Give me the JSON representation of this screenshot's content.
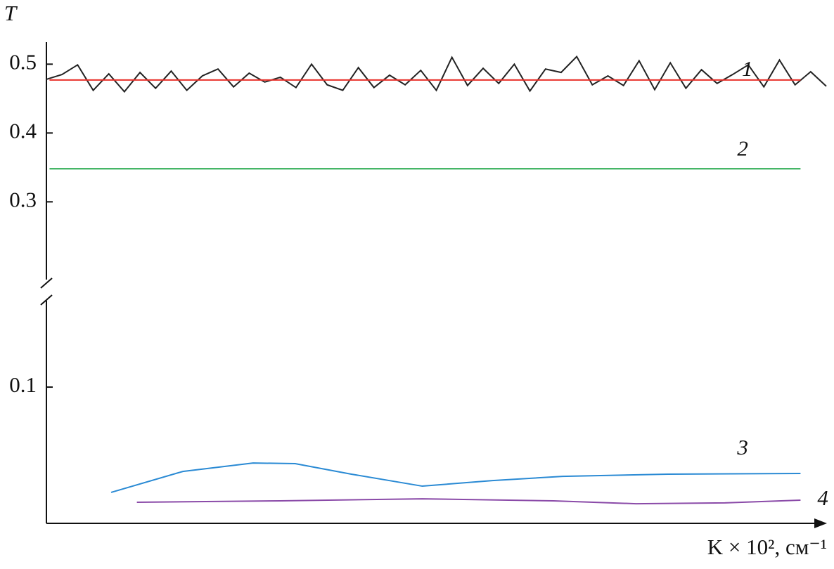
{
  "chart_data": [
    {
      "type": "line",
      "ylabel": "T",
      "xlim": [
        0,
        100
      ],
      "ylim": [
        0.185,
        0.532
      ],
      "yticks": [
        0.3,
        0.4,
        0.5
      ],
      "series": [
        {
          "name": "1",
          "color": "#222222",
          "x": [
            0,
            2,
            4,
            6,
            8,
            10,
            12,
            14,
            16,
            18,
            20,
            22,
            24,
            26,
            28,
            30,
            32,
            34,
            36,
            38,
            40,
            42,
            44,
            46,
            48,
            50,
            52,
            54,
            56,
            58,
            60,
            62,
            64,
            66,
            68,
            70,
            72,
            74,
            76,
            78,
            80,
            82,
            84,
            86,
            88,
            90,
            92,
            94,
            96,
            98,
            100
          ],
          "values": [
            0.478,
            0.485,
            0.499,
            0.462,
            0.486,
            0.46,
            0.488,
            0.465,
            0.49,
            0.462,
            0.483,
            0.493,
            0.467,
            0.487,
            0.474,
            0.481,
            0.466,
            0.5,
            0.47,
            0.462,
            0.495,
            0.466,
            0.484,
            0.47,
            0.491,
            0.462,
            0.51,
            0.469,
            0.494,
            0.472,
            0.5,
            0.461,
            0.493,
            0.488,
            0.511,
            0.47,
            0.483,
            0.469,
            0.505,
            0.463,
            0.502,
            0.465,
            0.492,
            0.472,
            0.485,
            0.499,
            0.467,
            0.506,
            0.47,
            0.489,
            0.468
          ]
        },
        {
          "color": "#e8302a",
          "x": [
            0.4,
            96.7
          ],
          "values": [
            0.477,
            0.477
          ]
        },
        {
          "name": "2",
          "color": "#22a84a",
          "x": [
            0.4,
            96.7
          ],
          "values": [
            0.348,
            0.348
          ]
        }
      ]
    },
    {
      "type": "line",
      "xlabel": "K × 10², см⁻¹",
      "xlim": [
        0,
        100
      ],
      "ylim": [
        0,
        0.165
      ],
      "yticks": [
        0.1
      ],
      "series": [
        {
          "name": "3",
          "color": "#2a8ad4",
          "x": [
            8.3,
            17.5,
            26.5,
            31.9,
            39.1,
            48.2,
            57.2,
            66.2,
            79.7,
            96.7
          ],
          "values": [
            0.0227,
            0.0381,
            0.0443,
            0.0438,
            0.0361,
            0.0273,
            0.0314,
            0.0345,
            0.0361,
            0.0366
          ]
        },
        {
          "name": "4",
          "color": "#8a4aa8",
          "x": [
            11.6,
            30,
            48.2,
            65,
            75.6,
            87,
            96.7
          ],
          "values": [
            0.0155,
            0.0165,
            0.018,
            0.0165,
            0.0144,
            0.015,
            0.017
          ]
        }
      ]
    }
  ]
}
